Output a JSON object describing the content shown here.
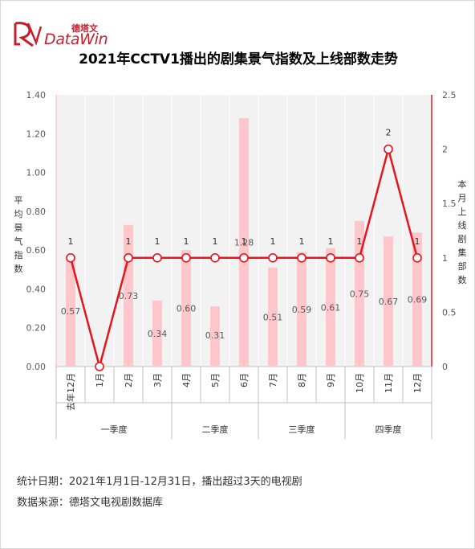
{
  "brand": {
    "cn": "德塔文",
    "en": "DataWin"
  },
  "title": "2021年CCTV1播出的剧集景气指数及上线部数走势",
  "chart_data": {
    "type": "bar+line",
    "categories": [
      "去年12月",
      "1月",
      "2月",
      "3月",
      "4月",
      "5月",
      "6月",
      "7月",
      "8月",
      "9月",
      "10月",
      "11月",
      "12月"
    ],
    "quarters": [
      {
        "label": "一季度",
        "span": [
          0,
          3
        ]
      },
      {
        "label": "二季度",
        "span": [
          4,
          6
        ]
      },
      {
        "label": "三季度",
        "span": [
          7,
          9
        ]
      },
      {
        "label": "四季度",
        "span": [
          10,
          12
        ]
      }
    ],
    "series": [
      {
        "axis": "left",
        "type": "bar",
        "color": "#ffc7c9",
        "values": [
          0.57,
          null,
          0.73,
          0.34,
          0.6,
          0.31,
          1.28,
          0.51,
          0.59,
          0.61,
          0.75,
          0.67,
          0.69
        ],
        "labels": [
          "0.57",
          "",
          "0.73",
          "0.34",
          "0.60",
          "0.31",
          "1.28",
          "0.51",
          "0.59",
          "0.61",
          "0.75",
          "0.67",
          "0.69"
        ]
      },
      {
        "axis": "right",
        "type": "line",
        "color": "#e8141c",
        "values": [
          1,
          0,
          1,
          1,
          1,
          1,
          1,
          1,
          1,
          1,
          1,
          2,
          1
        ],
        "labels": [
          "1",
          "",
          "1",
          "1",
          "1",
          "1",
          "1",
          "1",
          "1",
          "1",
          "1",
          "2",
          "1"
        ]
      }
    ],
    "yleft": {
      "label": "平均景气指数",
      "ylim": [
        0,
        1.4
      ],
      "ticks": [
        "0.00",
        "0.20",
        "0.40",
        "0.60",
        "0.80",
        "1.00",
        "1.20",
        "1.40"
      ]
    },
    "yright": {
      "label": "本月上线剧集部数",
      "ylim": [
        0,
        2.5
      ],
      "ticks": [
        "0",
        "0.5",
        "1",
        "1.5",
        "2",
        "2.5"
      ]
    },
    "grid": true
  },
  "footer": {
    "line1": "统计日期：2021年1月1日-12月31日，播出超过3天的电视剧",
    "line2": "数据来源：德塔文电视剧数据库"
  }
}
